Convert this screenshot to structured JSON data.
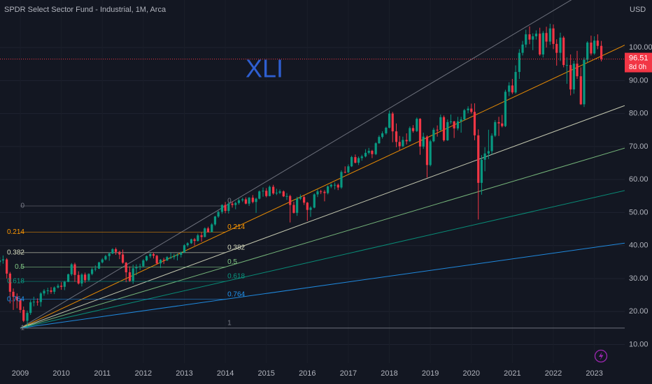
{
  "chart_data": {
    "type": "candlestick",
    "title": "SPDR Select Sector Fund - Industrial, 1M, Arca",
    "currency": "USD",
    "annotation": "XLI",
    "countdown": "8d 0h",
    "up_color": "#089981",
    "down_color": "#f23645",
    "x": [
      2008.5,
      2008.58,
      2008.67,
      2008.75,
      2008.83,
      2008.92,
      2009,
      2009.08,
      2009.17,
      2009.25,
      2009.33,
      2009.42,
      2009.5,
      2009.58,
      2009.67,
      2009.75,
      2009.83,
      2009.92,
      2010,
      2010.08,
      2010.17,
      2010.25,
      2010.33,
      2010.42,
      2010.5,
      2010.58,
      2010.67,
      2010.75,
      2010.83,
      2010.92,
      2011,
      2011.08,
      2011.17,
      2011.25,
      2011.33,
      2011.42,
      2011.5,
      2011.58,
      2011.67,
      2011.75,
      2011.83,
      2011.92,
      2012,
      2012.08,
      2012.17,
      2012.25,
      2012.33,
      2012.42,
      2012.5,
      2012.58,
      2012.67,
      2012.75,
      2012.83,
      2012.92,
      2013,
      2013.08,
      2013.17,
      2013.25,
      2013.33,
      2013.42,
      2013.5,
      2013.58,
      2013.67,
      2013.75,
      2013.83,
      2013.92,
      2014,
      2014.08,
      2014.17,
      2014.25,
      2014.33,
      2014.42,
      2014.5,
      2014.58,
      2014.67,
      2014.75,
      2014.83,
      2014.92,
      2015,
      2015.08,
      2015.17,
      2015.25,
      2015.33,
      2015.42,
      2015.5,
      2015.58,
      2015.67,
      2015.75,
      2015.83,
      2015.92,
      2016,
      2016.08,
      2016.17,
      2016.25,
      2016.33,
      2016.42,
      2016.5,
      2016.58,
      2016.67,
      2016.75,
      2016.83,
      2016.92,
      2017,
      2017.08,
      2017.17,
      2017.25,
      2017.33,
      2017.42,
      2017.5,
      2017.58,
      2017.67,
      2017.75,
      2017.83,
      2017.92,
      2018,
      2018.08,
      2018.17,
      2018.25,
      2018.33,
      2018.42,
      2018.5,
      2018.58,
      2018.67,
      2018.75,
      2018.83,
      2018.92,
      2019,
      2019.08,
      2019.17,
      2019.25,
      2019.33,
      2019.42,
      2019.5,
      2019.58,
      2019.67,
      2019.75,
      2019.83,
      2019.92,
      2020,
      2020.08,
      2020.17,
      2020.25,
      2020.33,
      2020.42,
      2020.5,
      2020.58,
      2020.67,
      2020.75,
      2020.83,
      2020.92,
      2021,
      2021.08,
      2021.17,
      2021.25,
      2021.33,
      2021.42,
      2021.5,
      2021.58,
      2021.67,
      2021.75,
      2021.83,
      2021.92,
      2022,
      2022.08,
      2022.17,
      2022.25,
      2022.33,
      2022.42,
      2022.5,
      2022.58,
      2022.67,
      2022.75,
      2022.83,
      2022.92,
      2023,
      2023.08,
      2023.17
    ],
    "open": [
      35.0,
      35.5,
      35.8,
      31.5,
      26.0,
      24.5,
      23.4,
      20.5,
      17.2,
      19.6,
      22.8,
      23.0,
      22.9,
      25.5,
      26.3,
      26.4,
      26.0,
      27.3,
      27.8,
      27.5,
      29.0,
      31.3,
      34.3,
      31.1,
      28.5,
      31.2,
      29.5,
      31.4,
      32.8,
      33.0,
      34.9,
      35.8,
      36.8,
      37.6,
      38.9,
      38.1,
      37.3,
      34.8,
      31.9,
      29.3,
      33.1,
      33.5,
      33.7,
      35.5,
      36.8,
      37.4,
      36.9,
      34.6,
      35.7,
      35.5,
      36.5,
      36.5,
      36.9,
      37.2,
      37.9,
      40.1,
      40.7,
      41.9,
      41.4,
      43.1,
      42.6,
      45.2,
      44.1,
      46.4,
      48.8,
      50.2,
      52.3,
      50.5,
      52.7,
      52.3,
      52.9,
      53.7,
      54.0,
      52.7,
      54.5,
      53.2,
      54.2,
      56.4,
      56.6,
      55.0,
      57.8,
      55.8,
      56.0,
      56.4,
      54.9,
      55.0,
      52.3,
      49.9,
      54.2,
      54.7,
      53.0,
      50.8,
      51.5,
      55.5,
      56.4,
      56.3,
      55.9,
      57.9,
      58.4,
      58.4,
      57.6,
      62.3,
      62.2,
      64.0,
      66.8,
      65.1,
      66.5,
      67.0,
      68.1,
      68.7,
      67.7,
      71.0,
      72.9,
      74.0,
      75.7,
      80.0,
      74.6,
      71.4,
      70.1,
      72.0,
      71.6,
      75.6,
      74.7,
      78.4,
      70.0,
      73.0,
      64.4,
      71.6,
      75.1,
      75.0,
      78.9,
      71.9,
      77.4,
      77.6,
      75.5,
      77.6,
      78.2,
      81.0,
      81.5,
      80.5,
      73.4,
      59.0,
      66.0,
      67.9,
      68.6,
      73.3,
      77.4,
      77.0,
      76.2,
      86.6,
      88.5,
      86.4,
      92.6,
      98.4,
      100.9,
      104.0,
      102.4,
      103.4,
      104.2,
      97.9,
      104.4,
      101.8,
      105.8,
      101.1,
      98.4,
      103.0,
      94.7,
      94.7,
      87.3,
      95.1,
      91.3,
      82.8,
      96.3,
      101.5,
      98.2,
      102.1,
      100.5
    ],
    "high": [
      36.5,
      37.0,
      36.2,
      32.0,
      27.0,
      25.5,
      24.0,
      21.5,
      20.3,
      23.5,
      24.5,
      24.0,
      25.9,
      26.8,
      27.2,
      27.4,
      27.6,
      28.4,
      28.9,
      29.3,
      31.5,
      34.7,
      34.8,
      32.2,
      31.6,
      31.8,
      31.6,
      33.3,
      34.0,
      35.1,
      36.2,
      37.2,
      37.9,
      39.2,
      39.4,
      38.4,
      38.8,
      35.0,
      33.7,
      34.2,
      34.3,
      34.5,
      35.9,
      37.0,
      37.8,
      37.9,
      37.2,
      35.9,
      36.3,
      36.8,
      37.8,
      37.5,
      37.6,
      38.2,
      40.4,
      41.0,
      42.1,
      42.3,
      43.6,
      44.0,
      45.5,
      45.7,
      46.8,
      49.0,
      50.5,
      52.5,
      53.2,
      53.0,
      53.4,
      53.3,
      54.2,
      54.5,
      54.6,
      54.7,
      55.3,
      54.5,
      56.7,
      57.6,
      57.4,
      58.2,
      58.4,
      57.2,
      57.0,
      56.7,
      55.9,
      55.4,
      53.3,
      54.8,
      55.5,
      55.2,
      53.2,
      51.9,
      55.8,
      57.0,
      56.9,
      56.8,
      58.2,
      58.8,
      59.1,
      58.8,
      62.8,
      64.0,
      64.6,
      67.2,
      67.6,
      67.0,
      67.5,
      69.2,
      69.6,
      69.0,
      71.3,
      73.4,
      74.6,
      76.0,
      80.9,
      80.5,
      77.0,
      73.2,
      73.0,
      74.0,
      76.1,
      76.5,
      78.8,
      78.6,
      74.2,
      73.4,
      72.1,
      75.7,
      76.4,
      79.7,
      79.4,
      78.2,
      79.7,
      77.8,
      79.0,
      79.0,
      81.4,
      82.2,
      83.0,
      83.1,
      75.2,
      67.4,
      69.8,
      75.1,
      74.0,
      78.0,
      79.0,
      79.6,
      87.2,
      89.5,
      90.5,
      94.6,
      99.5,
      102.0,
      105.4,
      106.4,
      104.3,
      105.2,
      106.0,
      105.0,
      106.3,
      107.2,
      107.0,
      102.5,
      104.5,
      103.5,
      97.0,
      97.9,
      96.0,
      99.0,
      94.0,
      97.0,
      101.9,
      103.6,
      103.4,
      104.0,
      102.0
    ],
    "low": [
      33.8,
      34.5,
      30.0,
      22.5,
      20.5,
      21.0,
      19.6,
      16.8,
      14.8,
      19.0,
      21.6,
      21.8,
      21.5,
      24.8,
      25.2,
      25.4,
      25.3,
      27.0,
      26.6,
      26.5,
      28.9,
      30.8,
      29.0,
      28.2,
      27.6,
      28.7,
      29.2,
      31.0,
      32.2,
      32.9,
      34.6,
      35.5,
      35.4,
      37.4,
      37.2,
      35.9,
      34.5,
      28.9,
      29.0,
      28.4,
      31.0,
      32.6,
      33.6,
      35.2,
      36.2,
      36.1,
      34.2,
      33.2,
      34.4,
      35.3,
      35.9,
      35.8,
      35.5,
      36.4,
      37.8,
      39.6,
      40.5,
      40.0,
      41.2,
      41.2,
      42.5,
      43.9,
      44.0,
      46.0,
      48.4,
      49.6,
      49.8,
      49.7,
      51.5,
      51.0,
      52.4,
      53.2,
      52.5,
      52.0,
      52.8,
      49.9,
      54.0,
      54.8,
      54.6,
      54.9,
      55.4,
      55.3,
      55.6,
      54.7,
      53.8,
      47.0,
      49.7,
      49.0,
      53.8,
      52.3,
      47.5,
      48.7,
      51.3,
      54.7,
      55.6,
      53.4,
      55.5,
      57.4,
      57.0,
      56.8,
      57.2,
      61.9,
      61.9,
      63.8,
      64.9,
      64.4,
      65.7,
      66.7,
      67.6,
      66.5,
      67.4,
      70.8,
      72.4,
      73.6,
      75.5,
      71.3,
      69.8,
      68.8,
      69.8,
      70.6,
      71.4,
      74.2,
      74.4,
      67.5,
      69.3,
      60.6,
      64.0,
      71.3,
      73.0,
      74.8,
      71.5,
      71.7,
      76.8,
      72.6,
      74.9,
      74.2,
      78.0,
      80.1,
      80.0,
      71.9,
      47.9,
      55.4,
      62.5,
      66.2,
      67.6,
      72.9,
      73.2,
      75.8,
      75.9,
      85.3,
      85.9,
      86.0,
      90.5,
      97.6,
      100.0,
      101.0,
      99.2,
      102.4,
      97.5,
      97.0,
      100.0,
      100.8,
      99.5,
      94.5,
      95.9,
      94.0,
      89.0,
      85.5,
      86.0,
      90.5,
      82.6,
      82.0,
      95.5,
      97.6,
      97.8,
      99.5,
      95.8
    ],
    "close": [
      35.5,
      35.8,
      31.5,
      26.0,
      24.5,
      23.4,
      20.5,
      17.2,
      19.6,
      22.8,
      23.0,
      22.9,
      25.5,
      26.3,
      26.4,
      26.0,
      27.3,
      27.8,
      27.5,
      29.0,
      31.3,
      34.3,
      31.1,
      28.5,
      31.2,
      29.5,
      31.4,
      32.8,
      33.0,
      34.9,
      35.8,
      36.8,
      37.6,
      38.9,
      38.1,
      37.3,
      34.8,
      31.9,
      29.3,
      33.1,
      33.5,
      33.7,
      35.5,
      36.8,
      37.4,
      36.9,
      34.6,
      35.7,
      35.5,
      36.5,
      36.5,
      36.9,
      37.2,
      37.9,
      40.1,
      40.7,
      41.9,
      41.4,
      43.1,
      42.6,
      45.2,
      44.1,
      46.4,
      48.8,
      50.2,
      52.3,
      50.5,
      52.7,
      52.3,
      52.9,
      53.7,
      54.0,
      52.7,
      54.5,
      53.2,
      54.2,
      56.4,
      56.6,
      55.0,
      57.8,
      55.8,
      56.0,
      56.4,
      54.9,
      55.0,
      52.3,
      49.9,
      54.2,
      54.7,
      53.0,
      50.8,
      51.5,
      55.5,
      56.4,
      56.3,
      55.9,
      57.9,
      58.4,
      58.4,
      57.6,
      62.3,
      62.2,
      64.0,
      66.8,
      65.1,
      66.5,
      67.0,
      68.1,
      68.7,
      67.7,
      71.0,
      72.9,
      74.0,
      75.7,
      80.0,
      74.6,
      71.4,
      70.1,
      72.0,
      71.6,
      75.6,
      74.7,
      78.4,
      70.0,
      73.0,
      64.4,
      71.6,
      75.1,
      75.0,
      78.9,
      71.9,
      77.4,
      77.6,
      75.5,
      77.6,
      78.2,
      81.0,
      81.5,
      80.5,
      73.4,
      59.0,
      66.0,
      67.9,
      68.6,
      73.3,
      77.4,
      77.0,
      76.2,
      86.6,
      88.5,
      86.4,
      92.6,
      98.4,
      100.9,
      104.0,
      102.4,
      103.4,
      104.2,
      97.9,
      104.4,
      101.8,
      105.8,
      101.1,
      98.4,
      103.0,
      94.7,
      94.7,
      87.3,
      95.1,
      91.3,
      82.8,
      96.3,
      101.5,
      98.2,
      102.1,
      100.5,
      96.51
    ],
    "xlim": [
      2008.505,
      2023.74
    ],
    "ylim": [
      4.4,
      114.4
    ],
    "xticks": [
      2009,
      2010,
      2011,
      2012,
      2013,
      2014,
      2015,
      2016,
      2017,
      2018,
      2019,
      2020,
      2021,
      2022,
      2023
    ],
    "yticks": [
      {
        "value": 10,
        "label": "10.00"
      },
      {
        "value": 20,
        "label": "20.00"
      },
      {
        "value": 30,
        "label": "30.00"
      },
      {
        "value": 40,
        "label": "40.00"
      },
      {
        "value": 50,
        "label": "50.00"
      },
      {
        "value": 60,
        "label": "60.00"
      },
      {
        "value": 70,
        "label": "70.00"
      },
      {
        "value": 80,
        "label": "80.00"
      },
      {
        "value": 90,
        "label": "90.00"
      },
      {
        "value": 100,
        "label": "100.00"
      }
    ],
    "grid": true,
    "fib": {
      "levels": [
        0,
        0.214,
        0.382,
        0.5,
        0.618,
        0.764,
        1
      ],
      "colors": [
        "#787b86",
        "#ff9800",
        "#d8dcc0",
        "#81c784",
        "#089981",
        "#2196f3",
        "#787b86"
      ],
      "start": [
        2009,
        15
      ],
      "end": [
        2014,
        52
      ]
    }
  }
}
